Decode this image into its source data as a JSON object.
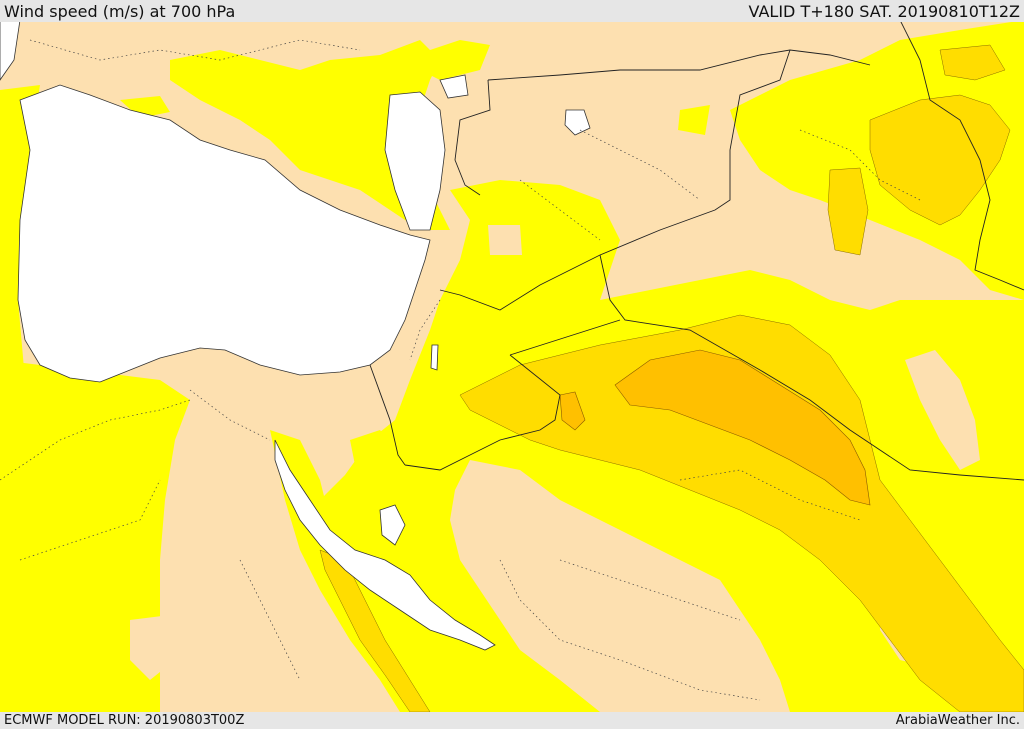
{
  "header": {
    "title": "Wind speed (m/s) at 700 hPa",
    "valid": "VALID T+180 SAT. 20190810T12Z"
  },
  "footer": {
    "model_run": "ECMWF MODEL RUN: 20190803T00Z",
    "credit": "ArabiaWeather Inc."
  },
  "colors": {
    "land_background": "#fde0b0",
    "band_low": "#ffff00",
    "band_mid": "#ffdd00",
    "band_high": "#ffc000",
    "band_peak": "#ffb000",
    "water": "#ffffff",
    "borders": "#222222"
  }
}
